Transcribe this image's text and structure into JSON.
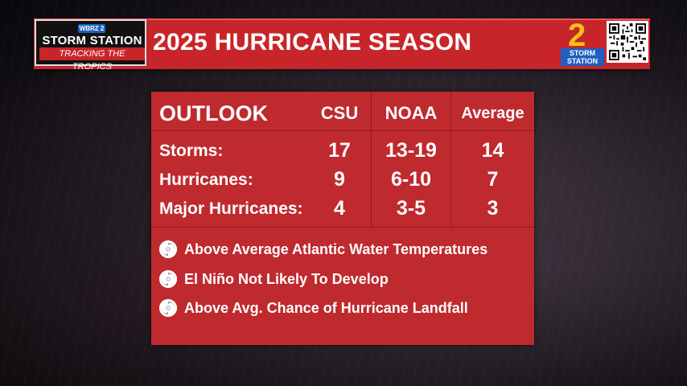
{
  "header": {
    "logo_network": "WBRZ 2",
    "logo_title": "STORM STATION",
    "logo_subtitle": "TRACKING THE TROPICS",
    "title": "2025 HURRICANE SEASON",
    "channel_number": "2",
    "channel_label": "STORM STATION"
  },
  "table": {
    "title": "OUTLOOK",
    "columns": [
      "CSU",
      "NOAA",
      "Average"
    ],
    "rows": [
      {
        "label": "Storms:",
        "csu": "17",
        "noaa": "13-19",
        "average": "14"
      },
      {
        "label": "Hurricanes:",
        "csu": "9",
        "noaa": "6-10",
        "average": "7"
      },
      {
        "label": "Major Hurricanes:",
        "csu": "4",
        "noaa": "3-5",
        "average": "3"
      }
    ]
  },
  "bullets": [
    {
      "icon": "hurricane-icon",
      "text": "Above Average Atlantic Water Temperatures"
    },
    {
      "icon": "hurricane-icon",
      "text": "El Niño Not Likely To Develop"
    },
    {
      "icon": "hurricane-icon",
      "text": "Above Avg. Chance of Hurricane Landfall"
    }
  ],
  "colors": {
    "banner_red": "#c8252a",
    "panel_red": "#bf2a2f",
    "accent_blue": "#1f5fbf",
    "accent_yellow": "#f2c21b"
  }
}
